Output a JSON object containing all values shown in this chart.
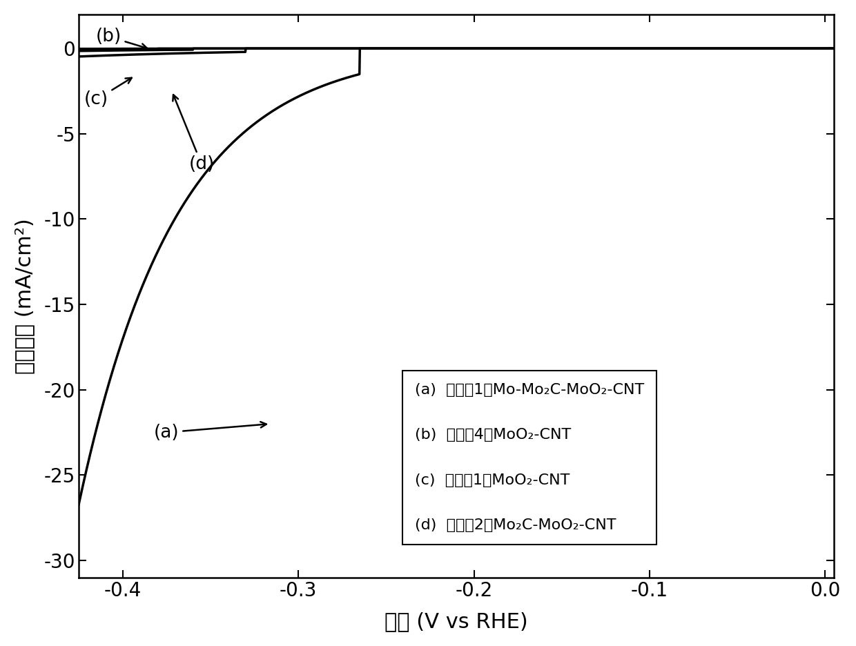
{
  "xlabel": "电压 (V vs RHE)",
  "ylabel": "电流密度 (mA/cm²)",
  "xlim": [
    -0.425,
    0.005
  ],
  "ylim": [
    -31,
    2
  ],
  "xticks": [
    -0.4,
    -0.3,
    -0.2,
    -0.1,
    0.0
  ],
  "yticks": [
    0,
    -5,
    -10,
    -15,
    -20,
    -25,
    -30
  ],
  "background_color": "#ffffff",
  "line_color": "#000000",
  "linewidth": 2.5,
  "legend_line1": "(a)  实施例1的Mo-Mo₂C-MoO₂-CNT",
  "legend_line2": "(b)  对比例4的MoO₂-CNT",
  "legend_line3": "(c)  对比例1的MoO₂-CNT",
  "legend_line4": "(d)  对比例2的Mo₂C-MoO₂-CNT"
}
